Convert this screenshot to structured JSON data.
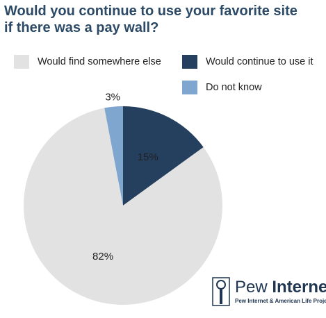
{
  "chart_data": {
    "type": "pie",
    "title_line1": "Would you continue to use your favorite site",
    "title_line2": "if there was a pay wall?",
    "slices": [
      {
        "label": "Would continue to use it",
        "value": 15,
        "text": "15%",
        "color": "#253f5e",
        "label_color": "#ffffff"
      },
      {
        "label": "Would find somewhere else",
        "value": 82,
        "text": "82%",
        "color": "#e2e2e2",
        "label_color": "#222222"
      },
      {
        "label": "Do not know",
        "value": 3,
        "text": "3%",
        "color": "#7fa6cf",
        "label_color": "#222222"
      }
    ],
    "legend": [
      {
        "label": "Would find somewhere else",
        "color": "#e2e2e2"
      },
      {
        "label": "Would continue to use it",
        "color": "#253f5e"
      },
      {
        "label": "Do not know",
        "color": "#7fa6cf"
      }
    ],
    "legend_placement": "top"
  },
  "logo": {
    "name_regular": "Pew ",
    "name_bold": "Internet",
    "subtitle": "Pew Internet & American Life Project"
  }
}
